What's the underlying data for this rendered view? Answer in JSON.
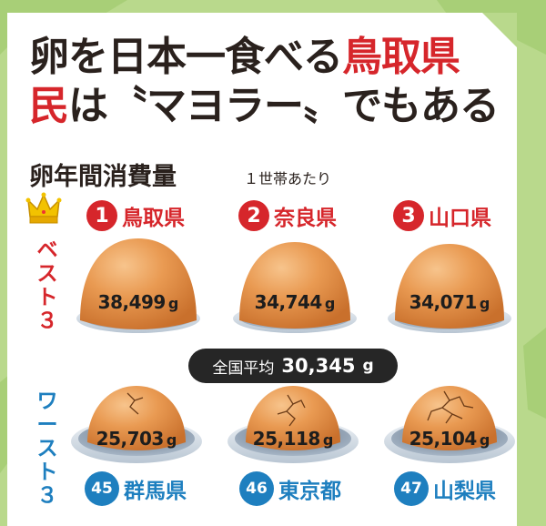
{
  "headline": {
    "line1_main": "卵を日本一食べる",
    "line1_accent": "鳥取県",
    "line2_accent": "民",
    "line2_main": "は〝マヨラー〟でもある"
  },
  "subtitle": {
    "title": "卵年間消費量",
    "note": "１世帯あたり"
  },
  "best_label": "ベスト３",
  "worst_label": "ワースト３",
  "best": [
    {
      "rank": "1",
      "prefecture": "鳥取県",
      "value": "38,499",
      "unit": "g"
    },
    {
      "rank": "2",
      "prefecture": "奈良県",
      "value": "34,744",
      "unit": "g"
    },
    {
      "rank": "3",
      "prefecture": "山口県",
      "value": "34,071",
      "unit": "g"
    }
  ],
  "national_average": {
    "label": "全国平均",
    "value": "30,345",
    "unit": "g"
  },
  "worst": [
    {
      "rank": "45",
      "prefecture": "群馬県",
      "value": "25,703",
      "unit": "g"
    },
    {
      "rank": "46",
      "prefecture": "東京都",
      "value": "25,118",
      "unit": "g"
    },
    {
      "rank": "47",
      "prefecture": "山梨県",
      "value": "25,104",
      "unit": "g"
    }
  ],
  "colors": {
    "best_red": "#d6262b",
    "worst_blue": "#1e7fbf",
    "egg": "#e08a3e",
    "background_green": "#b9d98c"
  },
  "icons": [
    "crown-icon",
    "egg-icon",
    "cracked-egg-icon",
    "nest-hole-icon"
  ]
}
